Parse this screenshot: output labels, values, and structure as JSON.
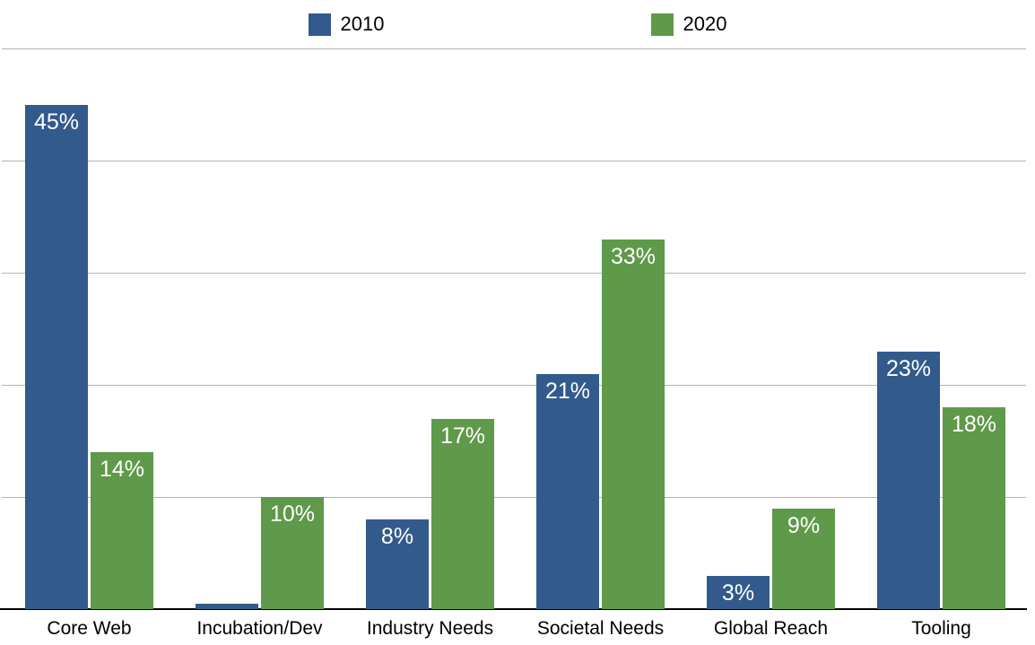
{
  "legend": {
    "items": [
      {
        "label": "2010",
        "color": "#335a8c"
      },
      {
        "label": "2020",
        "color": "#5f994a"
      }
    ]
  },
  "chart_data": {
    "type": "bar",
    "categories": [
      "Core Web",
      "Incubation/Dev",
      "Industry Needs",
      "Societal Needs",
      "Global Reach",
      "Tooling"
    ],
    "series": [
      {
        "name": "2010",
        "color": "#335a8c",
        "values": [
          45,
          0.5,
          8,
          21,
          3,
          23
        ],
        "labels": [
          "45%",
          "",
          "8%",
          "21%",
          "3%",
          "23%"
        ]
      },
      {
        "name": "2020",
        "color": "#5f994a",
        "values": [
          14,
          10,
          17,
          33,
          9,
          18
        ],
        "labels": [
          "14%",
          "10%",
          "17%",
          "33%",
          "9%",
          "18%"
        ]
      }
    ],
    "title": "",
    "xlabel": "",
    "ylabel": "",
    "ylim": [
      0,
      50
    ],
    "gridline_step": 10,
    "grid": true,
    "legend_position": "top",
    "value_label_format": "percent"
  },
  "colors": {
    "gridline": "#b3b3b3",
    "axis_line": "#000000",
    "bar_label_text": "#ffffff",
    "category_label_text": "#000000"
  }
}
